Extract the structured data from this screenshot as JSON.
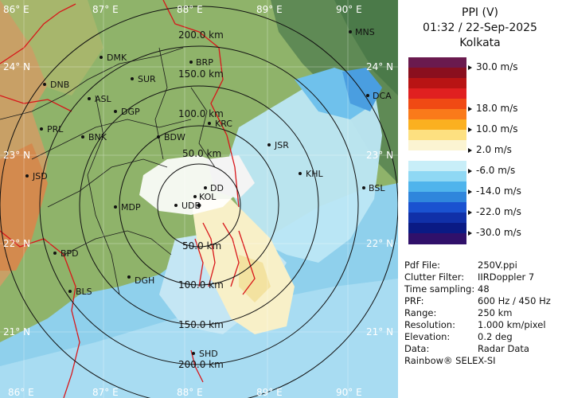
{
  "header": {
    "product": "PPI (V)",
    "datetime": "01:32 / 22-Sep-2025",
    "station": "Kolkata"
  },
  "colorbar": {
    "labels": [
      {
        "text": "30.0 m/s",
        "row": 1
      },
      {
        "text": "18.0 m/s",
        "row": 5
      },
      {
        "text": "10.0 m/s",
        "row": 7
      },
      {
        "text": "2.0 m/s",
        "row": 9
      },
      {
        "text": "-6.0 m/s",
        "row": 11
      },
      {
        "text": "-14.0 m/s",
        "row": 13
      },
      {
        "text": "-22.0 m/s",
        "row": 15
      },
      {
        "text": "-30.0 m/s",
        "row": 17
      }
    ],
    "colors": [
      "#6a1a4e",
      "#8a0f1e",
      "#b81414",
      "#e02020",
      "#f04a14",
      "#fa7a1a",
      "#fbb020",
      "#fde080",
      "#fbf4d2",
      "#ffffff",
      "#c8eef8",
      "#8fd8f4",
      "#4fb4ec",
      "#2f86dc",
      "#1a52d0",
      "#1030a8",
      "#0a1a84",
      "#30106a"
    ]
  },
  "info": [
    {
      "key": "Pdf File:",
      "value": "250V.ppi"
    },
    {
      "key": "Clutter Filter:",
      "value": "IIRDoppler 7"
    },
    {
      "key": "Time sampling:",
      "value": "48"
    },
    {
      "key": "PRF:",
      "value": "600 Hz / 450 Hz"
    },
    {
      "key": "Range:",
      "value": "250 km"
    },
    {
      "key": "Resolution:",
      "value": "1.000 km/pixel"
    },
    {
      "key": "Elevation:",
      "value": "0.2 deg"
    },
    {
      "key": "Data:",
      "value": "Radar Data"
    }
  ],
  "footer": "Rainbow® SELEX-SI",
  "map": {
    "lon_labels": [
      "86° E",
      "87° E",
      "88° E",
      "89° E",
      "90° E"
    ],
    "lat_labels": [
      "24° N",
      "23° N",
      "22° N",
      "21° N"
    ],
    "range_rings": [
      "50.0 km",
      "100.0 km",
      "150.0 km",
      "200.0 km"
    ],
    "cities": [
      "MNS",
      "DMK",
      "BRP",
      "DNB",
      "SUR",
      "ASL",
      "DGP",
      "DCA",
      "KRC",
      "PRL",
      "BNK",
      "BDW",
      "JSR",
      "JSD",
      "KHL",
      "DD",
      "BSL",
      "KOL",
      "MDP",
      "UDB",
      "BPD",
      "DGH",
      "BLS",
      "SHD"
    ]
  }
}
